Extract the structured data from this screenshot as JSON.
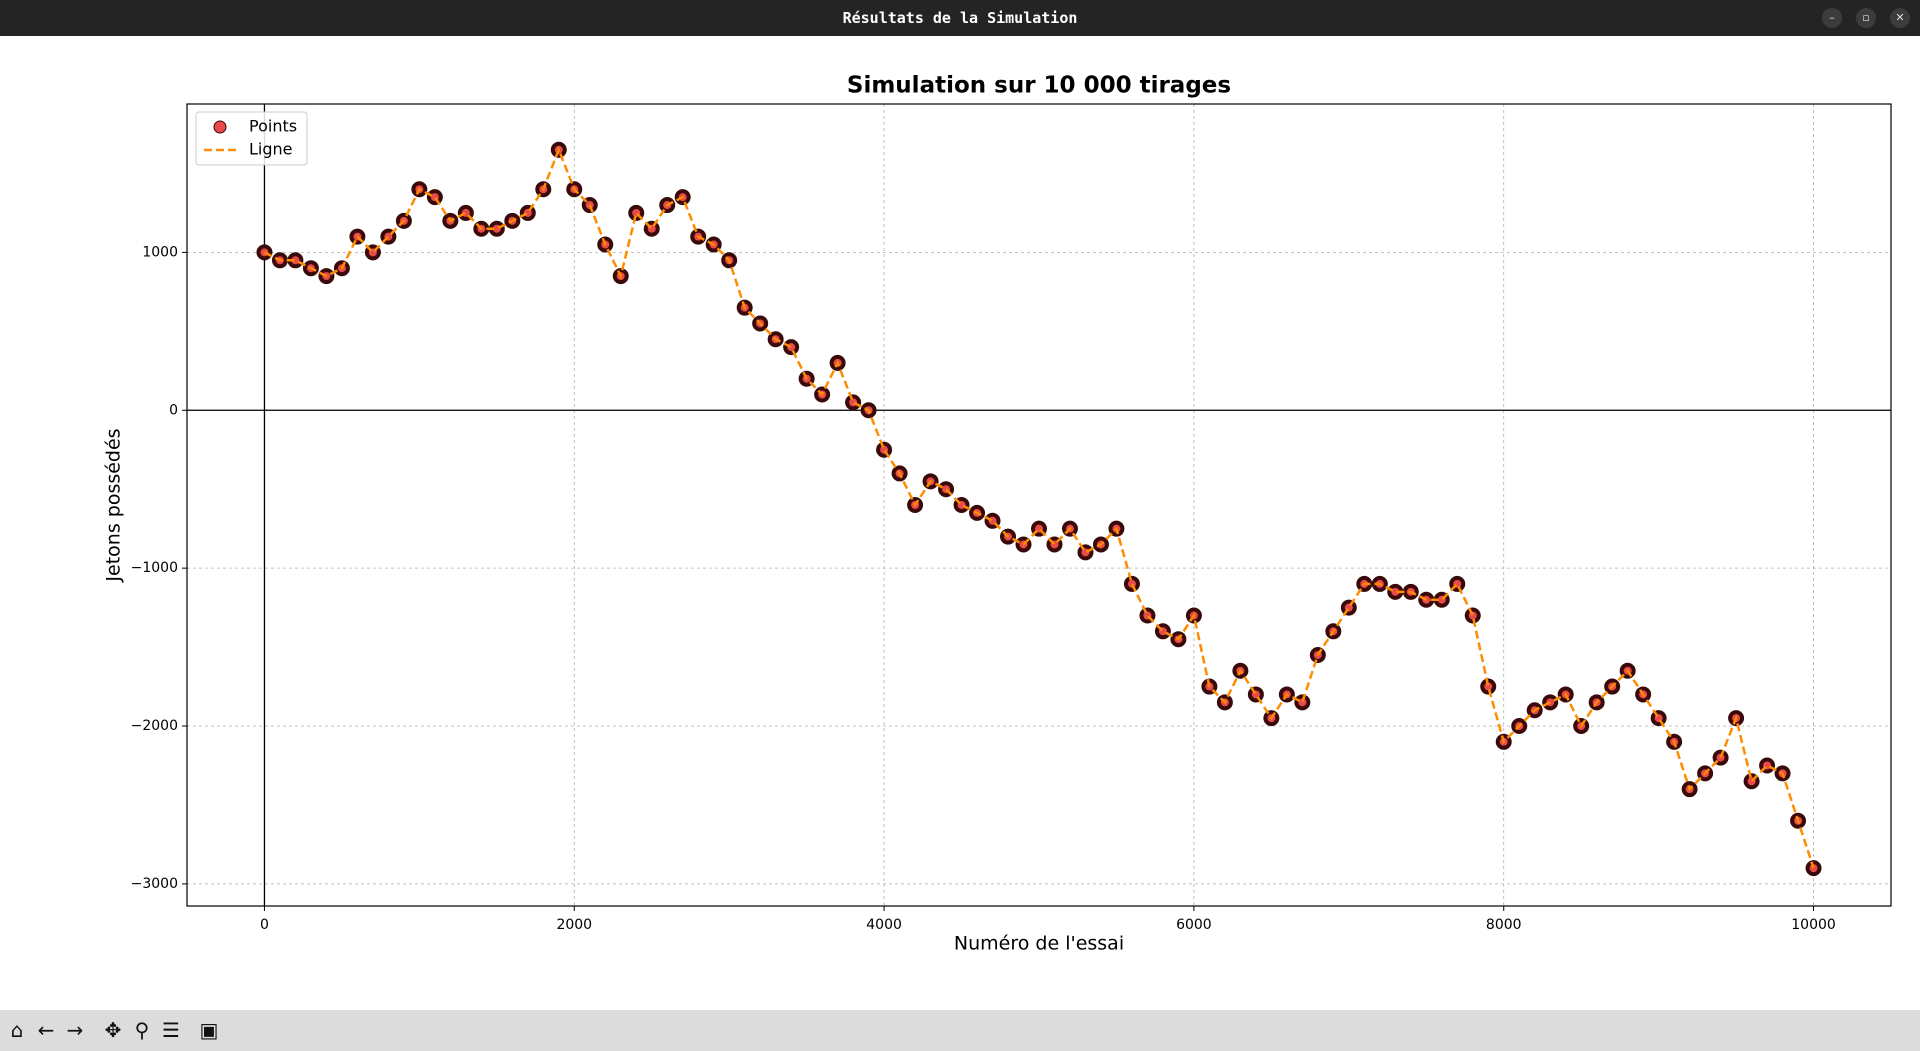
{
  "window_title": "Résultats de la Simulation",
  "chart_data": {
    "type": "scatter-line",
    "title": "Simulation sur 10 000 tirages",
    "xlabel": "Numéro de l'essai",
    "ylabel": "Jetons possédés",
    "x": [
      0,
      100,
      200,
      300,
      400,
      500,
      600,
      700,
      800,
      900,
      1000,
      1100,
      1200,
      1300,
      1400,
      1500,
      1600,
      1700,
      1800,
      1900,
      2000,
      2100,
      2200,
      2300,
      2400,
      2500,
      2600,
      2700,
      2800,
      2900,
      3000,
      3100,
      3200,
      3300,
      3400,
      3500,
      3600,
      3700,
      3800,
      3900,
      4000,
      4100,
      4200,
      4300,
      4400,
      4500,
      4600,
      4700,
      4800,
      4900,
      5000,
      5100,
      5200,
      5300,
      5400,
      5500,
      5600,
      5700,
      5800,
      5900,
      6000,
      6100,
      6200,
      6300,
      6400,
      6500,
      6600,
      6700,
      6800,
      6900,
      7000,
      7100,
      7200,
      7300,
      7400,
      7500,
      7600,
      7700,
      7800,
      7900,
      8000,
      8100,
      8200,
      8300,
      8400,
      8500,
      8600,
      8700,
      8800,
      8900,
      9000,
      9100,
      9200,
      9300,
      9400,
      9500,
      9600,
      9700,
      9800,
      9900,
      10000
    ],
    "series": [
      {
        "name": "Points",
        "kind": "scatter",
        "color": "#e84a4a",
        "edgecolor": "#3a0a0a",
        "values": [
          1000,
          950,
          950,
          900,
          850,
          900,
          1100,
          1000,
          1100,
          1200,
          1400,
          1350,
          1200,
          1250,
          1150,
          1150,
          1200,
          1250,
          1400,
          1650,
          1400,
          1300,
          1050,
          850,
          1250,
          1150,
          1300,
          1350,
          1100,
          1050,
          950,
          650,
          550,
          450,
          400,
          200,
          100,
          300,
          50,
          0,
          -250,
          -400,
          -600,
          -450,
          -500,
          -600,
          -650,
          -700,
          -800,
          -850,
          -750,
          -850,
          -750,
          -900,
          -850,
          -750,
          -1100,
          -1300,
          -1400,
          -1450,
          -1300,
          -1750,
          -1850,
          -1650,
          -1800,
          -1950,
          -1800,
          -1850,
          -1550,
          -1400,
          -1250,
          -1100,
          -1100,
          -1150,
          -1150,
          -1200,
          -1200,
          -1100,
          -1300,
          -1750,
          -2100,
          -2000,
          -1900,
          -1850,
          -1800,
          -2000,
          -1850,
          -1750,
          -1650,
          -1800,
          -1950,
          -2100,
          -2400,
          -2300,
          -2200,
          -1950,
          -2350,
          -2250,
          -2300,
          -2600,
          -2900
        ]
      },
      {
        "name": "Ligne",
        "kind": "line",
        "color": "#ff8c00",
        "values": [
          1000,
          950,
          950,
          900,
          850,
          900,
          1100,
          1000,
          1100,
          1200,
          1400,
          1350,
          1200,
          1250,
          1150,
          1150,
          1200,
          1250,
          1400,
          1650,
          1400,
          1300,
          1050,
          850,
          1250,
          1150,
          1300,
          1350,
          1100,
          1050,
          950,
          650,
          550,
          450,
          400,
          200,
          100,
          300,
          50,
          0,
          -250,
          -400,
          -600,
          -450,
          -500,
          -600,
          -650,
          -700,
          -800,
          -850,
          -750,
          -850,
          -750,
          -900,
          -850,
          -750,
          -1100,
          -1300,
          -1400,
          -1450,
          -1300,
          -1750,
          -1850,
          -1650,
          -1800,
          -1950,
          -1800,
          -1850,
          -1550,
          -1400,
          -1250,
          -1100,
          -1100,
          -1150,
          -1150,
          -1200,
          -1200,
          -1100,
          -1300,
          -1750,
          -2100,
          -2000,
          -1900,
          -1850,
          -1800,
          -2000,
          -1850,
          -1750,
          -1650,
          -1800,
          -1950,
          -2100,
          -2400,
          -2300,
          -2200,
          -1950,
          -2350,
          -2250,
          -2300,
          -2600,
          -2900
        ]
      }
    ],
    "xlim": [
      -500,
      10500
    ],
    "ylim": [
      -3140,
      1940
    ],
    "xticks": [
      0,
      2000,
      4000,
      6000,
      8000,
      10000
    ],
    "yticks": [
      {
        "value": -3000,
        "label": "−3000"
      },
      {
        "value": -2000,
        "label": "−2000"
      },
      {
        "value": -1000,
        "label": "−1000"
      },
      0,
      1000
    ],
    "grid": true,
    "legend": "upper left"
  }
}
